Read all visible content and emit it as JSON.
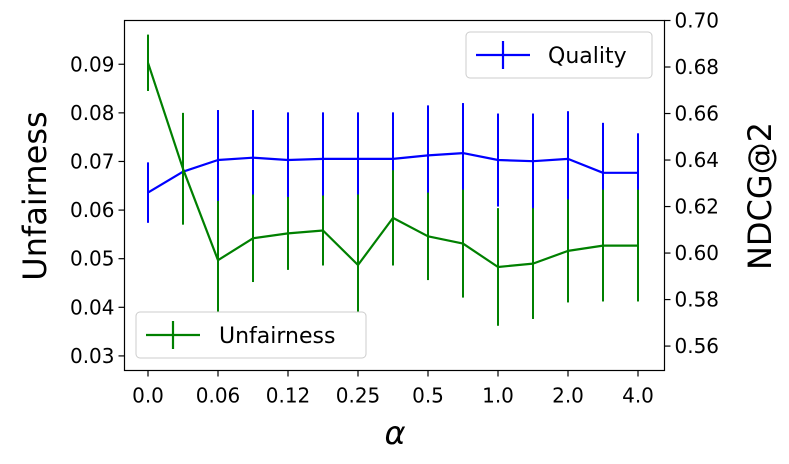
{
  "chart_data": {
    "type": "line",
    "categories": [
      "0.0",
      "",
      "0.06",
      "",
      "0.12",
      "",
      "0.25",
      "",
      "0.5",
      "",
      "1.0",
      "",
      "2.0",
      "",
      "4.0"
    ],
    "x_tick_labels": [
      "0.0",
      "0.06",
      "0.12",
      "0.25",
      "0.5",
      "1.0",
      "2.0",
      "4.0"
    ],
    "xlabel": "α",
    "left_axis": {
      "ylabel": "Unfairness",
      "ylim": [
        0.027,
        0.099
      ],
      "ticks": [
        "0.03",
        "0.04",
        "0.05",
        "0.06",
        "0.07",
        "0.08",
        "0.09"
      ],
      "tick_values": [
        0.03,
        0.04,
        0.05,
        0.06,
        0.07,
        0.08,
        0.09
      ]
    },
    "right_axis": {
      "ylabel": "NDCG@2",
      "ylim": [
        0.5495,
        0.7
      ],
      "ticks": [
        "0.56",
        "0.58",
        "0.60",
        "0.62",
        "0.64",
        "0.66",
        "0.68",
        "0.70"
      ],
      "tick_values": [
        0.56,
        0.58,
        0.6,
        0.62,
        0.64,
        0.66,
        0.68,
        0.7
      ]
    },
    "series": [
      {
        "name": "Quality",
        "axis": "right",
        "color": "#0000ff",
        "values": [
          0.626,
          0.635,
          0.64,
          0.641,
          0.64,
          0.6405,
          0.6405,
          0.6405,
          0.642,
          0.643,
          0.64,
          0.6395,
          0.6405,
          0.6345,
          0.6345
        ],
        "error": [
          0.013,
          0.0175,
          0.0215,
          0.0205,
          0.0205,
          0.02,
          0.02,
          0.02,
          0.0215,
          0.0215,
          0.02,
          0.0205,
          0.0205,
          0.0215,
          0.017
        ]
      },
      {
        "name": "Unfairness",
        "axis": "left",
        "color": "#008000",
        "values": [
          0.0903,
          0.0685,
          0.0497,
          0.0542,
          0.0552,
          0.0558,
          0.0487,
          0.0584,
          0.0546,
          0.0531,
          0.0483,
          0.049,
          0.0516,
          0.0527,
          0.0527
        ],
        "error": [
          0.0058,
          0.0115,
          0.0122,
          0.009,
          0.0075,
          0.0072,
          0.0145,
          0.0098,
          0.009,
          0.0111,
          0.0121,
          0.0114,
          0.0106,
          0.0115,
          0.0115
        ]
      }
    ],
    "legend": [
      {
        "label": "Quality",
        "placement": "upper-right"
      },
      {
        "label": "Unfairness",
        "placement": "lower-left"
      }
    ],
    "grid": false
  }
}
